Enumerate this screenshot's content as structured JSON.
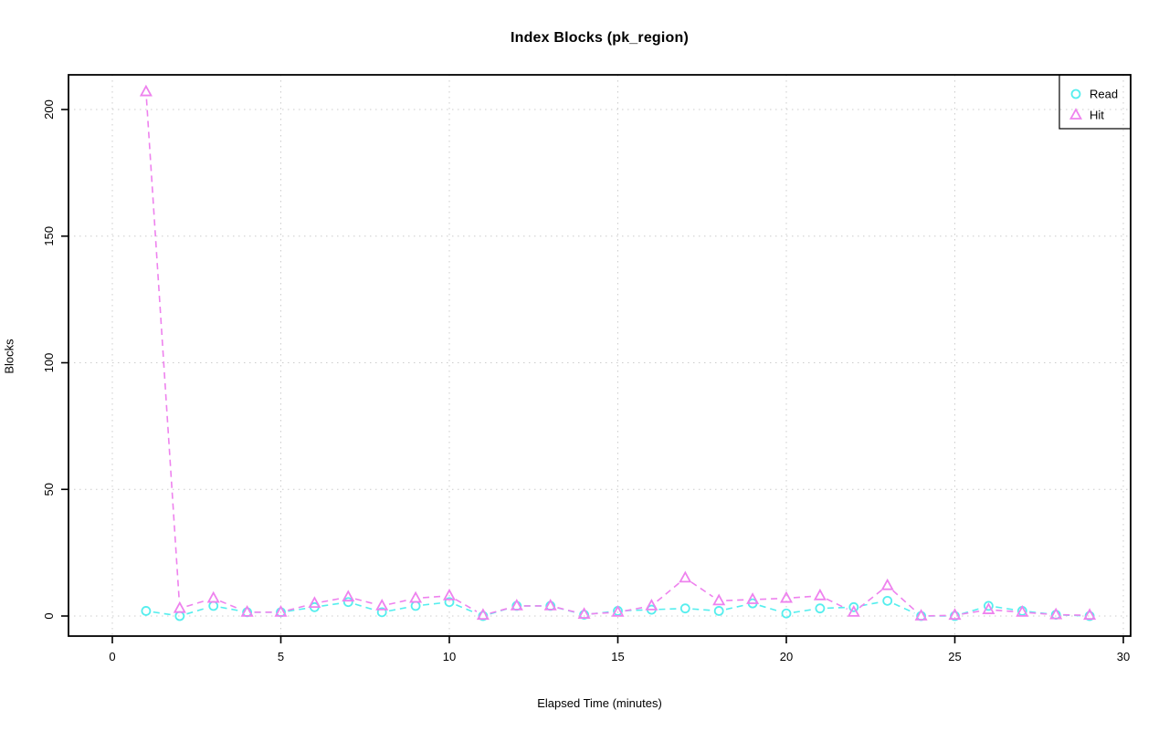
{
  "chart": {
    "title": "Index Blocks (pk_region)",
    "xlabel": "Elapsed Time (minutes)",
    "ylabel": "Blocks"
  },
  "chart_data": {
    "type": "line",
    "title": "Index Blocks (pk_region)",
    "xlabel": "Elapsed Time (minutes)",
    "ylabel": "Blocks",
    "x": [
      1,
      2,
      3,
      4,
      5,
      6,
      7,
      8,
      9,
      10,
      11,
      12,
      13,
      14,
      15,
      16,
      17,
      18,
      19,
      20,
      21,
      22,
      23,
      24,
      25,
      26,
      27,
      28,
      29
    ],
    "series": [
      {
        "name": "Read",
        "marker": "circle",
        "color": "#55EEEE",
        "linestyle": "dashed",
        "values": [
          2,
          0,
          4,
          1.5,
          1.5,
          3.5,
          5.5,
          1.5,
          4,
          5.5,
          0,
          4,
          4,
          0.5,
          2,
          2.5,
          3,
          2,
          5,
          1,
          3,
          3.5,
          6,
          0,
          0,
          4,
          2,
          0.5,
          0
        ]
      },
      {
        "name": "Hit",
        "marker": "triangle",
        "color": "#EE82EE",
        "linestyle": "dashed",
        "values": [
          207,
          3,
          7,
          1.5,
          1.5,
          5,
          7.5,
          4,
          7,
          8,
          0.3,
          4,
          4,
          0.7,
          1.5,
          4,
          15,
          6,
          6.5,
          7,
          8,
          1.5,
          12,
          0,
          0.3,
          2.5,
          1.5,
          0.5,
          0.3
        ]
      }
    ],
    "xlim": [
      0,
      30
    ],
    "ylim": [
      0,
      207
    ],
    "xticks": [
      0,
      5,
      10,
      15,
      20,
      25,
      30
    ],
    "yticks": [
      0,
      50,
      100,
      150,
      200
    ],
    "grid": true,
    "grid_color": "#cccccc",
    "frame_color": "#000000",
    "background": "#ffffff",
    "legend_position": "topright",
    "legend_labels": [
      "Read",
      "Hit"
    ]
  }
}
